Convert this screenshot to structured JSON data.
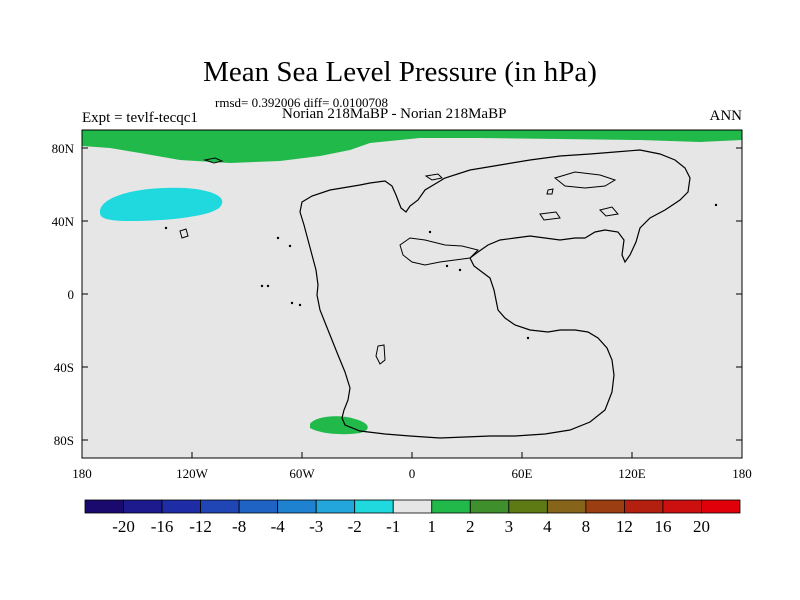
{
  "title": "Mean Sea Level Pressure (in hPa)",
  "stats_line": "rmsd= 0.392006 diff= 0.0100708",
  "experiment": "Expt = tevlf-tecqc1",
  "comparison": "Norian 218MaBP - Norian 218MaBP",
  "season": "ANN",
  "axes": {
    "longitude_ticks": [
      "180",
      "120W",
      "60W",
      "0",
      "60E",
      "120E",
      "180"
    ],
    "latitude_ticks": [
      "80N",
      "40N",
      "0",
      "40S",
      "80S"
    ]
  },
  "colorbar": {
    "colors": [
      "#1a0a6e",
      "#1c1a8c",
      "#1e2da5",
      "#1f46b4",
      "#1f63c4",
      "#1f82d1",
      "#22a6dc",
      "#1fd9de",
      "#e6e6e6",
      "#21b94a",
      "#3f8f2c",
      "#5e7a14",
      "#86641a",
      "#9b3f12",
      "#b3200f",
      "#cc1010",
      "#e0000a"
    ],
    "labels": [
      "-20",
      "-16",
      "-12",
      "-8",
      "-4",
      "-3",
      "-2",
      "-1",
      "1",
      "2",
      "3",
      "4",
      "8",
      "12",
      "16",
      "20"
    ]
  },
  "background_color": "#e6e6e6"
}
